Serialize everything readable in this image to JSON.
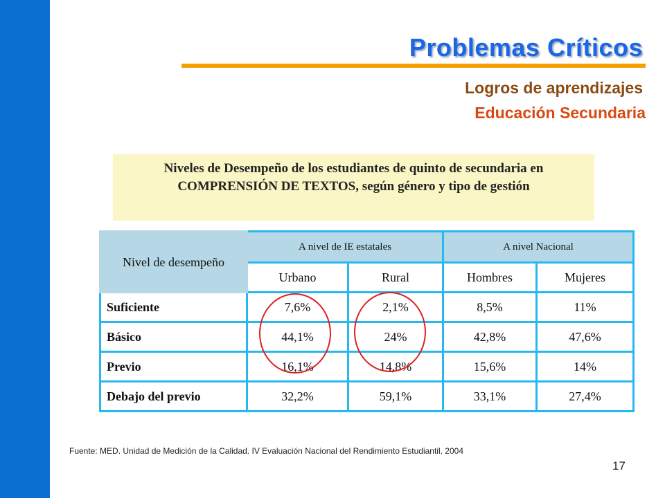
{
  "slide": {
    "title": "Problemas Críticos",
    "subtitle_1": "Logros de aprendizajes",
    "subtitle_2": "Educación Secundaria",
    "callout": "Niveles de Desempeño de los estudiantes de quinto de secundaria en COMPRENSIÓN DE TEXTOS, según género y tipo de gestión",
    "source": "Fuente: MED. Unidad de Medición de la Calidad. IV Evaluación Nacional del Rendimiento Estudiantil. 2004",
    "page_number": "17"
  },
  "table": {
    "level_header": "Nivel de desempeño",
    "groups": [
      "A nivel de IE estatales",
      "A nivel Nacional"
    ],
    "columns": [
      "Urbano",
      "Rural",
      "Hombres",
      "Mujeres"
    ],
    "rows": [
      {
        "label": "Suficiente",
        "values": [
          "7,6%",
          "2,1%",
          "8,5%",
          "11%"
        ]
      },
      {
        "label": "Básico",
        "values": [
          "44,1%",
          "24%",
          "42,8%",
          "47,6%"
        ]
      },
      {
        "label": "Previo",
        "values": [
          "16,1%",
          "14,8%",
          "15,6%",
          "14%"
        ]
      },
      {
        "label": "Debajo del previo",
        "values": [
          "32,2%",
          "59,1%",
          "33,1%",
          "27,4%"
        ]
      }
    ]
  },
  "colors": {
    "left_bar": "#0b6fd1",
    "title": "#1a66e6",
    "title_rule": "#f5a000",
    "subtitle_1": "#8a4a12",
    "subtitle_2": "#d84a12",
    "callout_bg": "#fbf6c6",
    "table_border": "#27b8f0",
    "header_bg": "#b6d8e6",
    "highlight_circle": "#e02020"
  }
}
